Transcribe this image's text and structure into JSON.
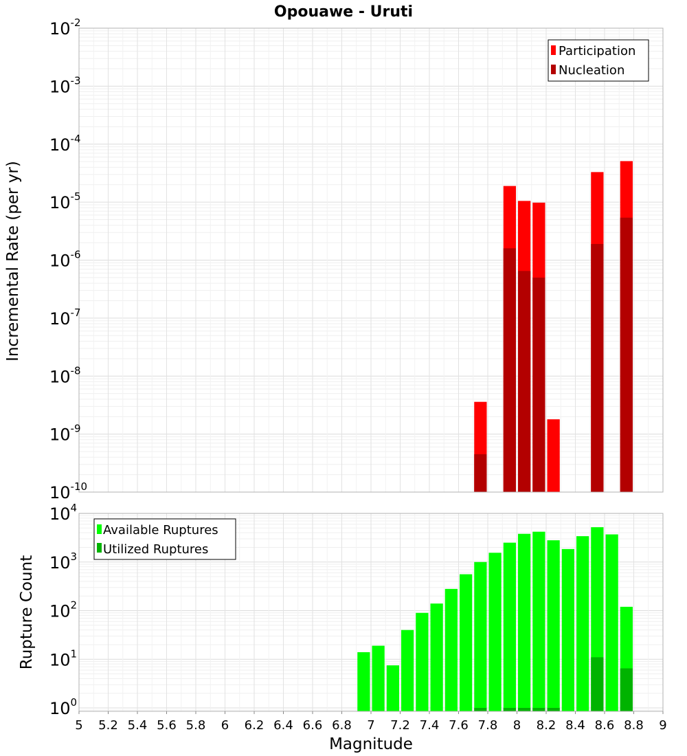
{
  "chart_data": [
    {
      "type": "bar",
      "title": "Opouawe - Uruti",
      "xlabel": "",
      "ylabel": "Incremental Rate (per yr)",
      "yscale": "log",
      "ylim": [
        1e-10,
        0.01
      ],
      "xlim": [
        5,
        9
      ],
      "y_tick_exponents": [
        "-10",
        "-9",
        "-8",
        "-7",
        "-6",
        "-5",
        "-4",
        "-3",
        "-2"
      ],
      "grid": true,
      "legend_position": "top-right",
      "bar_width": 0.1,
      "colors": {
        "Participation": "#ff0000",
        "Nucleation": "#b30000"
      },
      "series": [
        {
          "name": "Participation",
          "x": [
            7.75,
            7.95,
            8.05,
            8.15,
            8.25,
            8.55,
            8.75
          ],
          "values": [
            3.6e-09,
            1.9e-05,
            1.05e-05,
            9.8e-06,
            1.8e-09,
            3.3e-05,
            5.1e-05
          ]
        },
        {
          "name": "Nucleation",
          "x": [
            7.75,
            7.95,
            8.05,
            8.15,
            8.55,
            8.75
          ],
          "values": [
            4.5e-10,
            1.6e-06,
            6.5e-07,
            5e-07,
            1.9e-06,
            5.4e-06
          ]
        }
      ]
    },
    {
      "type": "bar",
      "title": "",
      "xlabel": "Magnitude",
      "ylabel": "Rupture Count",
      "yscale": "log",
      "ylim": [
        0.85,
        10000
      ],
      "xlim": [
        5,
        9
      ],
      "y_tick_exponents": [
        "0",
        "1",
        "2",
        "3",
        "4"
      ],
      "x_tick_labels": [
        "5",
        "5.2",
        "5.4",
        "5.6",
        "5.8",
        "6",
        "6.2",
        "6.4",
        "6.6",
        "6.8",
        "7",
        "7.2",
        "7.4",
        "7.6",
        "7.8",
        "8",
        "8.2",
        "8.4",
        "8.6",
        "8.8",
        "9"
      ],
      "grid": true,
      "legend_position": "top-left",
      "bar_width": 0.1,
      "colors": {
        "Available Ruptures": "#00ff00",
        "Utilized Ruptures": "#00b300"
      },
      "series": [
        {
          "name": "Available Ruptures",
          "x": [
            6.95,
            7.05,
            7.15,
            7.25,
            7.35,
            7.45,
            7.55,
            7.65,
            7.75,
            7.85,
            7.95,
            8.05,
            8.15,
            8.25,
            8.35,
            8.45,
            8.55,
            8.65,
            8.75
          ],
          "values": [
            14,
            19,
            7.5,
            40,
            90,
            140,
            280,
            560,
            1000,
            1550,
            2500,
            3800,
            4200,
            2800,
            1850,
            3400,
            5200,
            3700,
            120
          ]
        },
        {
          "name": "Utilized Ruptures",
          "x": [
            7.75,
            7.95,
            8.05,
            8.15,
            8.25,
            8.55,
            8.75
          ],
          "values": [
            1,
            1,
            1,
            1,
            1,
            11,
            6.5
          ]
        }
      ]
    }
  ]
}
